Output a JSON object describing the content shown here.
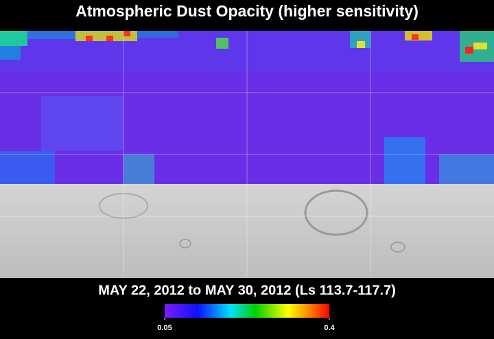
{
  "title": "Atmospheric Dust Opacity (higher sensitivity)",
  "subtitle": "MAY 22, 2012 to MAY 30, 2012 (Ls 113.7-117.7)",
  "colorbar": {
    "range": [
      0.05,
      0.4
    ],
    "ticks": [
      0.05,
      0.4
    ]
  }
}
